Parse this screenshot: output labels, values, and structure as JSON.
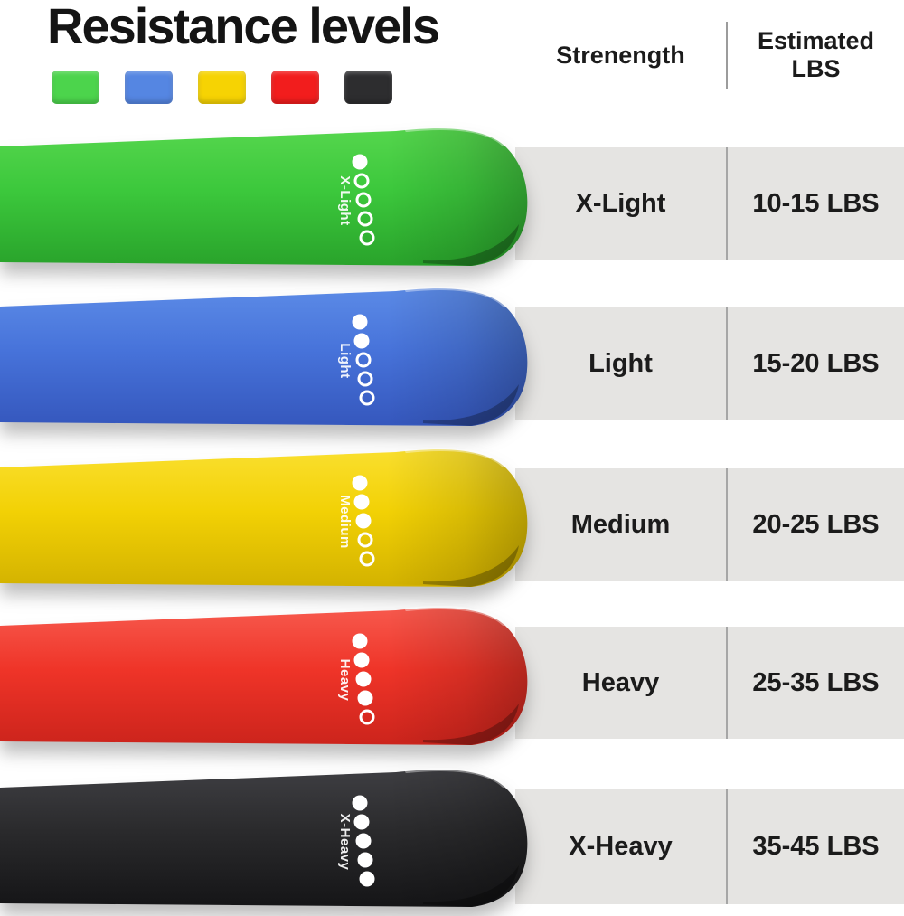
{
  "title": "Resistance levels",
  "table_header": {
    "strength": "Strenength",
    "estimated_line1": "Estimated",
    "estimated_line2": "LBS"
  },
  "bands": [
    {
      "label": "X-Light",
      "estimated_lbs": "10-15 LBS",
      "dots_filled": 1,
      "dots_total": 5,
      "colors": {
        "swatch": "#4cd44c",
        "light": "#55d64d",
        "main": "#3cc83c",
        "dark": "#29a32b"
      }
    },
    {
      "label": "Light",
      "estimated_lbs": "15-20 LBS",
      "dots_filled": 2,
      "dots_total": 5,
      "colors": {
        "swatch": "#5586e2",
        "light": "#5b8ae6",
        "main": "#4773da",
        "dark": "#3557bd"
      }
    },
    {
      "label": "Medium",
      "estimated_lbs": "20-25 LBS",
      "dots_filled": 3,
      "dots_total": 5,
      "colors": {
        "swatch": "#f6d303",
        "light": "#fadf2e",
        "main": "#f2d105",
        "dark": "#d3b200"
      }
    },
    {
      "label": "Heavy",
      "estimated_lbs": "25-35 LBS",
      "dots_filled": 4,
      "dots_total": 5,
      "colors": {
        "swatch": "#f21d1d",
        "light": "#f7594d",
        "main": "#ef3428",
        "dark": "#cc241c"
      }
    },
    {
      "label": "X-Heavy",
      "estimated_lbs": "35-45 LBS",
      "dots_filled": 5,
      "dots_total": 5,
      "colors": {
        "swatch": "#2d2d2f",
        "light": "#3e3e42",
        "main": "#2a2a2c",
        "dark": "#151517"
      }
    }
  ],
  "chart_data": {
    "type": "table",
    "columns": [
      "Strenength",
      "Estimated LBS"
    ],
    "rows": [
      [
        "X-Light",
        "10-15 LBS"
      ],
      [
        "Light",
        "15-20 LBS"
      ],
      [
        "Medium",
        "20-25 LBS"
      ],
      [
        "Heavy",
        "25-35 LBS"
      ],
      [
        "X-Heavy",
        "35-45 LBS"
      ]
    ]
  }
}
